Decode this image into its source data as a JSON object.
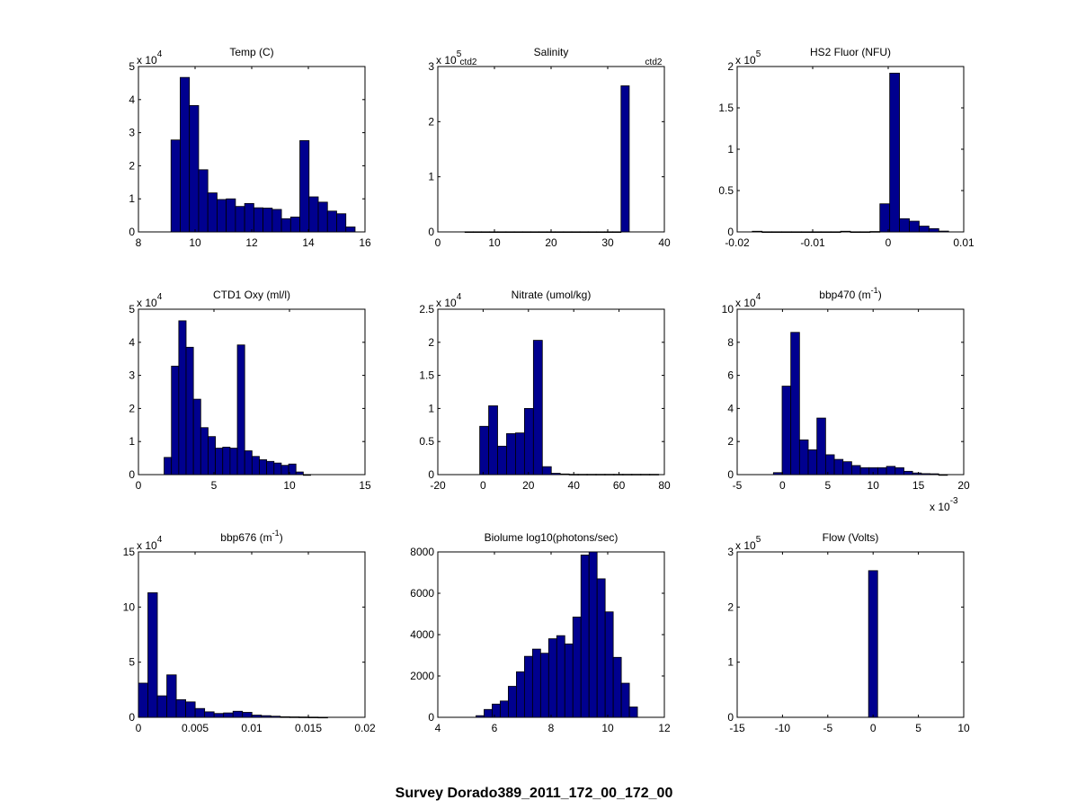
{
  "figure": {
    "suptitle": "Survey Dorado389_2011_172_00_172_00",
    "bar_color": "#00008F"
  },
  "chart_data": [
    {
      "type": "bar",
      "title": "Temp (C)",
      "xlabel": "",
      "ylabel": "",
      "xlim": [
        8,
        16
      ],
      "xticks": [
        8,
        10,
        12,
        14,
        16
      ],
      "xtick_labels": [
        "8",
        "10",
        "12",
        "14",
        "16"
      ],
      "ylim": [
        0,
        5
      ],
      "yticks": [
        0,
        1,
        2,
        3,
        4,
        5
      ],
      "ytick_labels": [
        "0",
        "1",
        "2",
        "3",
        "4",
        "5"
      ],
      "y_exponent": "x 10^4",
      "x_exponent": "",
      "bin_start": 9.15,
      "bin_width": 0.325,
      "values": [
        2.78,
        4.67,
        3.82,
        1.88,
        1.18,
        0.98,
        1.0,
        0.77,
        0.86,
        0.73,
        0.72,
        0.68,
        0.4,
        0.45,
        2.76,
        1.06,
        0.9,
        0.63,
        0.55,
        0.15
      ],
      "annotations": []
    },
    {
      "type": "bar",
      "title": "Salinity",
      "xlabel": "",
      "ylabel": "",
      "xlim": [
        0,
        40
      ],
      "xticks": [
        0,
        10,
        20,
        30,
        40
      ],
      "xtick_labels": [
        "0",
        "10",
        "20",
        "30",
        "40"
      ],
      "ylim": [
        0,
        3
      ],
      "yticks": [
        0,
        1,
        2,
        3
      ],
      "ytick_labels": [
        "0",
        "1",
        "2",
        "3"
      ],
      "y_exponent": "x 10^5",
      "x_exponent": "",
      "bin_start": 4.8,
      "bin_width": 1.45,
      "values": [
        0.003,
        0.003,
        0.003,
        0.003,
        0.003,
        0.003,
        0.003,
        0.003,
        0.003,
        0.003,
        0.003,
        0.003,
        0.003,
        0.003,
        0.003,
        0.003,
        0.003,
        0.003,
        0.003,
        2.65
      ],
      "annotations": [
        "ctd2",
        "ctd2"
      ]
    },
    {
      "type": "bar",
      "title": "HS2 Fluor (NFU)",
      "xlabel": "",
      "ylabel": "",
      "xlim": [
        -0.02,
        0.01
      ],
      "xticks": [
        -0.02,
        -0.01,
        0,
        0.01
      ],
      "xtick_labels": [
        "-0.02",
        "-0.01",
        "0",
        "0.01"
      ],
      "ylim": [
        0,
        2
      ],
      "yticks": [
        0,
        0.5,
        1,
        1.5,
        2
      ],
      "ytick_labels": [
        "0",
        "0.5",
        "1",
        "1.5",
        "2"
      ],
      "y_exponent": "x 10^5",
      "x_exponent": "",
      "bin_start": -0.018,
      "bin_width": 0.0013,
      "values": [
        0.008,
        0.002,
        0.002,
        0.002,
        0.002,
        0.002,
        0.002,
        0.002,
        0.002,
        0.008,
        0.002,
        0.002,
        0.005,
        0.34,
        1.92,
        0.16,
        0.13,
        0.07,
        0.04,
        0.01
      ],
      "annotations": []
    },
    {
      "type": "bar",
      "title": "CTD1 Oxy (ml/l)",
      "xlabel": "",
      "ylabel": "",
      "xlim": [
        0,
        15
      ],
      "xticks": [
        0,
        5,
        10,
        15
      ],
      "xtick_labels": [
        "0",
        "5",
        "10",
        "15"
      ],
      "ylim": [
        0,
        5
      ],
      "yticks": [
        0,
        1,
        2,
        3,
        4,
        5
      ],
      "ytick_labels": [
        "0",
        "1",
        "2",
        "3",
        "4",
        "5"
      ],
      "y_exponent": "x 10^4",
      "x_exponent": "",
      "bin_start": 1.7,
      "bin_width": 0.485,
      "values": [
        0.52,
        3.28,
        4.65,
        3.85,
        2.28,
        1.42,
        1.15,
        0.8,
        0.83,
        0.8,
        3.92,
        0.72,
        0.55,
        0.45,
        0.4,
        0.35,
        0.28,
        0.32,
        0.08,
        0.0
      ],
      "annotations": []
    },
    {
      "type": "bar",
      "title": "Nitrate (umol/kg)",
      "xlabel": "",
      "ylabel": "",
      "xlim": [
        -20,
        80
      ],
      "xticks": [
        -20,
        0,
        20,
        40,
        60,
        80
      ],
      "xtick_labels": [
        "-20",
        "0",
        "20",
        "40",
        "60",
        "80"
      ],
      "ylim": [
        0,
        2.5
      ],
      "yticks": [
        0,
        0.5,
        1,
        1.5,
        2,
        2.5
      ],
      "ytick_labels": [
        "0",
        "0.5",
        "1",
        "1.5",
        "2",
        "2.5"
      ],
      "y_exponent": "x 10^4",
      "x_exponent": "",
      "bin_start": -1.5,
      "bin_width": 3.95,
      "values": [
        0.73,
        1.04,
        0.43,
        0.62,
        0.63,
        1.0,
        2.03,
        0.12,
        0.02,
        0.01,
        0.005,
        0.005,
        0.005,
        0.005,
        0.005,
        0.005,
        0.005,
        0.005,
        0.005,
        0.005
      ],
      "annotations": []
    },
    {
      "type": "bar",
      "title": "bbp470 (m^-1)",
      "xlabel": "",
      "ylabel": "",
      "xlim": [
        -5,
        20
      ],
      "xticks": [
        -5,
        0,
        5,
        10,
        15,
        20
      ],
      "xtick_labels": [
        "-5",
        "0",
        "5",
        "10",
        "15",
        "20"
      ],
      "ylim": [
        0,
        10
      ],
      "yticks": [
        0,
        2,
        4,
        6,
        8,
        10
      ],
      "ytick_labels": [
        "0",
        "2",
        "4",
        "6",
        "8",
        "10"
      ],
      "y_exponent": "x 10^4",
      "x_exponent": "x 10^-3",
      "bin_start": -1.0,
      "bin_width": 0.96,
      "values": [
        0.12,
        5.35,
        8.6,
        2.1,
        1.5,
        3.42,
        1.2,
        0.92,
        0.78,
        0.55,
        0.42,
        0.42,
        0.42,
        0.5,
        0.42,
        0.2,
        0.1,
        0.06,
        0.05,
        0.0
      ],
      "annotations": []
    },
    {
      "type": "bar",
      "title": "bbp676 (m^-1)",
      "xlabel": "",
      "ylabel": "",
      "xlim": [
        0,
        0.02
      ],
      "xticks": [
        0,
        0.005,
        0.01,
        0.015,
        0.02
      ],
      "xtick_labels": [
        "0",
        "0.005",
        "0.01",
        "0.015",
        "0.02"
      ],
      "ylim": [
        0,
        15
      ],
      "yticks": [
        0,
        5,
        10,
        15
      ],
      "ytick_labels": [
        "0",
        "5",
        "10",
        "15"
      ],
      "y_exponent": "x 10^4",
      "x_exponent": "",
      "bin_start": 0,
      "bin_width": 0.000835,
      "values": [
        3.1,
        11.3,
        1.95,
        3.85,
        1.6,
        1.4,
        0.8,
        0.5,
        0.35,
        0.4,
        0.55,
        0.45,
        0.2,
        0.15,
        0.1,
        0.05,
        0.04,
        0.03,
        0.02,
        0.01
      ],
      "annotations": []
    },
    {
      "type": "bar",
      "title": "Biolume log10(photons/sec)",
      "xlabel": "",
      "ylabel": "",
      "xlim": [
        4,
        12
      ],
      "xticks": [
        4,
        6,
        8,
        10,
        12
      ],
      "xtick_labels": [
        "4",
        "6",
        "8",
        "10",
        "12"
      ],
      "ylim": [
        0,
        8000
      ],
      "yticks": [
        0,
        2000,
        4000,
        6000,
        8000
      ],
      "ytick_labels": [
        "0",
        "2000",
        "4000",
        "6000",
        "8000"
      ],
      "y_exponent": "",
      "x_exponent": "",
      "bin_start": 5.35,
      "bin_width": 0.285,
      "values": [
        80,
        380,
        640,
        790,
        1500,
        2200,
        2950,
        3300,
        3100,
        3800,
        3950,
        3550,
        4850,
        7850,
        8000,
        6700,
        5100,
        2900,
        1650,
        500
      ],
      "annotations": []
    },
    {
      "type": "bar",
      "title": "Flow (Volts)",
      "xlabel": "",
      "ylabel": "",
      "xlim": [
        -15,
        10
      ],
      "xticks": [
        -15,
        -10,
        -5,
        0,
        5,
        10
      ],
      "xtick_labels": [
        "-15",
        "-10",
        "-5",
        "0",
        "5",
        "10"
      ],
      "ylim": [
        0,
        3
      ],
      "yticks": [
        0,
        1,
        2,
        3
      ],
      "ytick_labels": [
        "0",
        "1",
        "2",
        "3"
      ],
      "y_exponent": "x 10^5",
      "x_exponent": "",
      "bin_start": -0.5,
      "bin_width": 1.0,
      "values": [
        2.66
      ],
      "annotations": []
    }
  ]
}
